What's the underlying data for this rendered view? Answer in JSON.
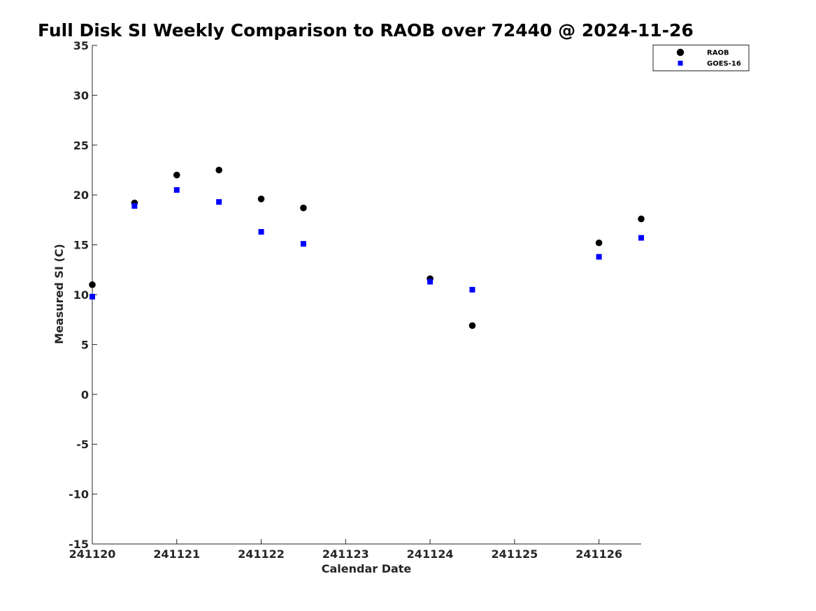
{
  "chart_data": {
    "type": "scatter",
    "title": "Full Disk SI Weekly Comparison to RAOB over 72440 @ 2024-11-26",
    "xlabel": "Calendar Date",
    "ylabel": "Measured SI (C)",
    "xlim": [
      241120,
      241126.5
    ],
    "ylim": [
      -15,
      35
    ],
    "x_ticks": [
      {
        "value": 241120,
        "label": "241120"
      },
      {
        "value": 241121,
        "label": "241121"
      },
      {
        "value": 241122,
        "label": "241122"
      },
      {
        "value": 241123,
        "label": "241123"
      },
      {
        "value": 241124,
        "label": "241124"
      },
      {
        "value": 241125,
        "label": "241125"
      },
      {
        "value": 241126,
        "label": "241126"
      }
    ],
    "y_ticks": [
      {
        "value": 35,
        "label": "35"
      },
      {
        "value": 30,
        "label": "30"
      },
      {
        "value": 25,
        "label": "25"
      },
      {
        "value": 20,
        "label": "20"
      },
      {
        "value": 15,
        "label": "15"
      },
      {
        "value": 10,
        "label": "10"
      },
      {
        "value": 5,
        "label": "5"
      },
      {
        "value": 0,
        "label": "0"
      },
      {
        "value": -5,
        "label": "-5"
      },
      {
        "value": -10,
        "label": "-10"
      },
      {
        "value": -15,
        "label": "-15"
      }
    ],
    "grid": false,
    "legend_position": "top-right",
    "series": [
      {
        "name": "RAOB",
        "marker": "circle",
        "color": "#000000",
        "x": [
          241120,
          241120.5,
          241121,
          241121.5,
          241122,
          241122.5,
          241124,
          241124.5,
          241126,
          241126.5
        ],
        "y": [
          11.0,
          19.2,
          22.0,
          22.5,
          19.6,
          18.7,
          11.6,
          6.9,
          15.2,
          17.6
        ]
      },
      {
        "name": "GOES-16",
        "marker": "square",
        "color": "#0000ff",
        "x": [
          241120,
          241120.5,
          241121,
          241121.5,
          241122,
          241122.5,
          241124,
          241124.5,
          241126,
          241126.5
        ],
        "y": [
          9.8,
          18.9,
          20.5,
          19.3,
          16.3,
          15.1,
          11.3,
          10.5,
          13.8,
          15.7
        ]
      }
    ]
  }
}
